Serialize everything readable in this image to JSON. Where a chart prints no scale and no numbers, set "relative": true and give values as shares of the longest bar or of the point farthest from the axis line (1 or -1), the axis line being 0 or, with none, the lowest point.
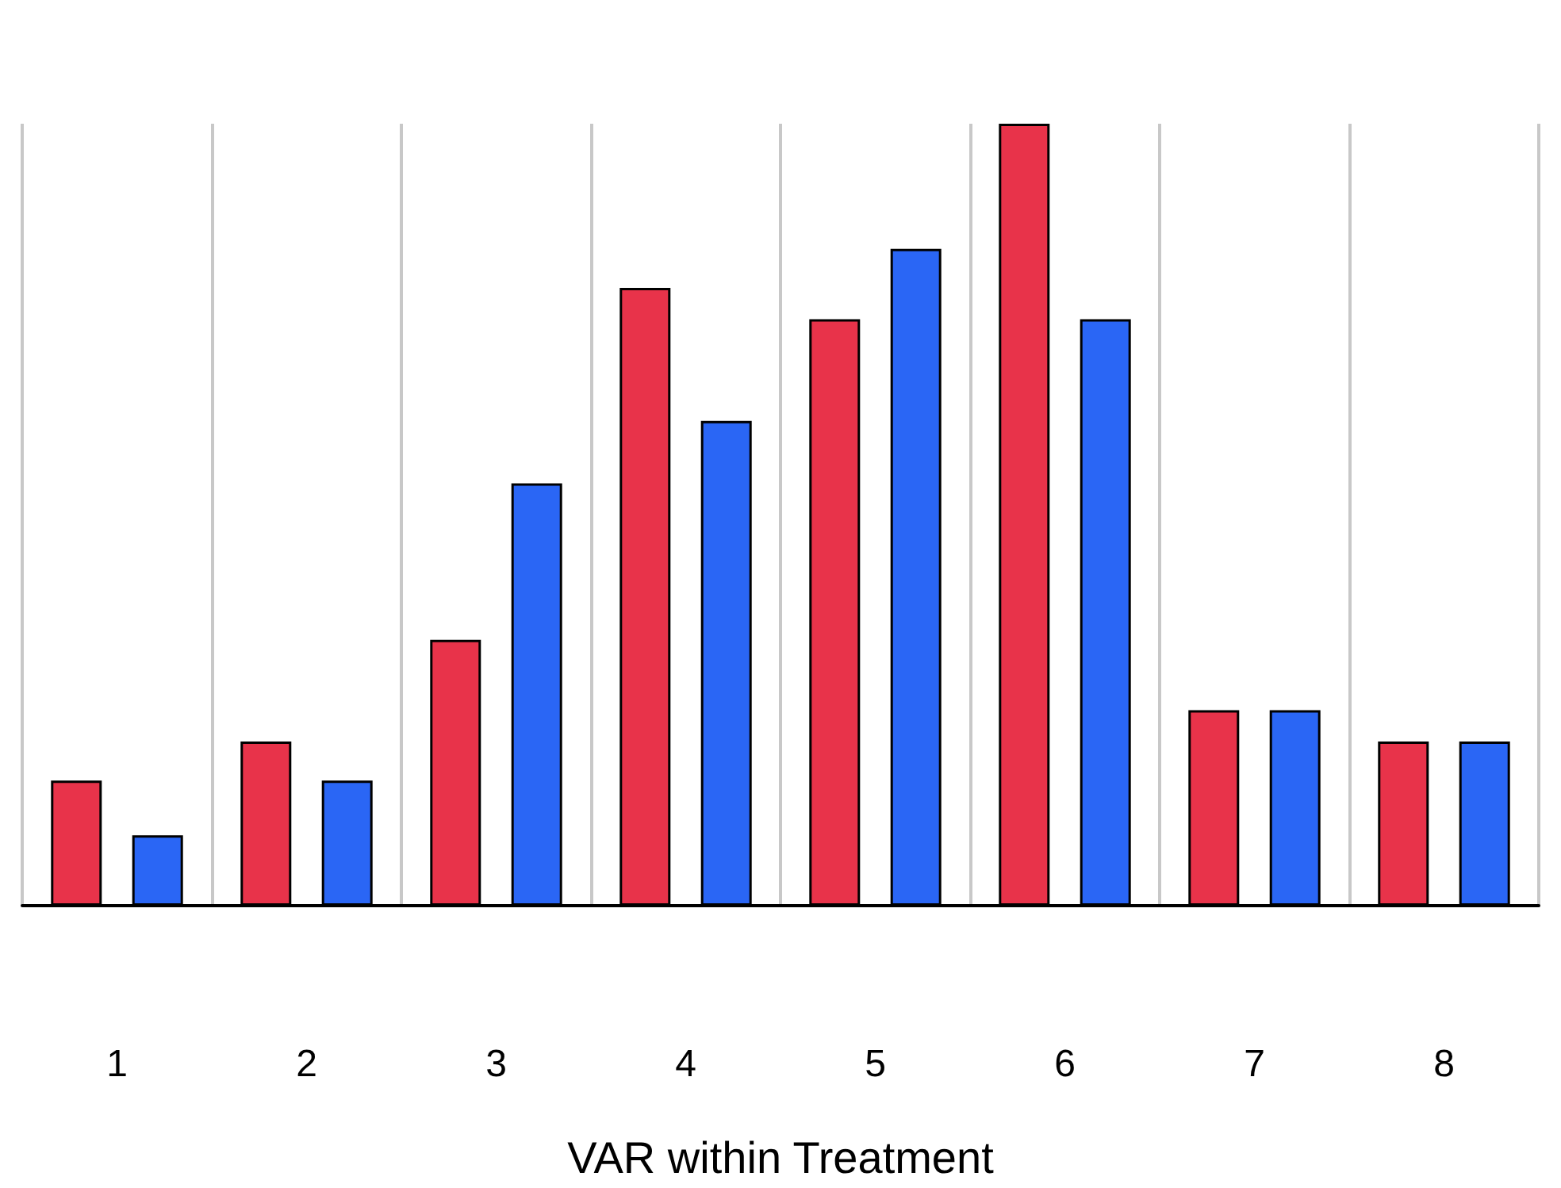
{
  "chart_data": {
    "type": "bar",
    "relative": true,
    "xlabel": "VAR within Treatment",
    "categories": [
      "1",
      "2",
      "3",
      "4",
      "5",
      "6",
      "7",
      "8"
    ],
    "series": [
      {
        "color": "#e8334a",
        "values": [
          0.16,
          0.21,
          0.34,
          0.79,
          0.75,
          1,
          0.25,
          0.21
        ]
      },
      {
        "color": "#2a66f5",
        "values": [
          0.09,
          0.16,
          0.54,
          0.62,
          0.84,
          0.75,
          0.25,
          0.21
        ]
      }
    ],
    "grid": "x"
  }
}
